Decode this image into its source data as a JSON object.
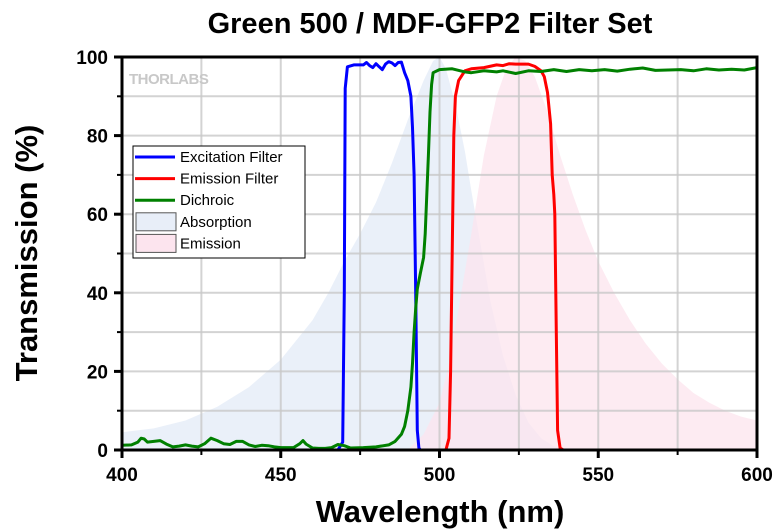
{
  "chart_data": {
    "type": "line",
    "title": "Green 500 / MDF-GFP2 Filter Set",
    "xlabel": "Wavelength (nm)",
    "ylabel": "Transmission (%)",
    "xlim": [
      400,
      600
    ],
    "ylim": [
      0,
      100
    ],
    "xticks": [
      400,
      450,
      500,
      550,
      600
    ],
    "yticks": [
      0,
      20,
      40,
      60,
      80,
      100
    ],
    "grid": true,
    "legend_position": "center-left",
    "watermark": "THORLABS",
    "series": [
      {
        "name": "Excitation Filter",
        "kind": "line",
        "color": "#0000ff",
        "points": [
          [
            400,
            0
          ],
          [
            468,
            0
          ],
          [
            469.5,
            2
          ],
          [
            470,
            40
          ],
          [
            470.3,
            92
          ],
          [
            471,
            97.5
          ],
          [
            473,
            98
          ],
          [
            476,
            98
          ],
          [
            477,
            98.6
          ],
          [
            478,
            97.8
          ],
          [
            479,
            97.3
          ],
          [
            480,
            98.3
          ],
          [
            481,
            97.5
          ],
          [
            482,
            96.8
          ],
          [
            483,
            98.2
          ],
          [
            484,
            98.8
          ],
          [
            485,
            98.5
          ],
          [
            486,
            97.8
          ],
          [
            487,
            98.6
          ],
          [
            488,
            98.7
          ],
          [
            489,
            96
          ],
          [
            490,
            94
          ],
          [
            491,
            90
          ],
          [
            491.5,
            82
          ],
          [
            492,
            70
          ],
          [
            492.5,
            40
          ],
          [
            493,
            5
          ],
          [
            493.5,
            0.5
          ],
          [
            494,
            0
          ],
          [
            600,
            0
          ]
        ]
      },
      {
        "name": "Emission Filter",
        "kind": "line",
        "color": "#ff0000",
        "points": [
          [
            400,
            0
          ],
          [
            502,
            0
          ],
          [
            503,
            3
          ],
          [
            503.5,
            20
          ],
          [
            504,
            50
          ],
          [
            504.5,
            80
          ],
          [
            505,
            90
          ],
          [
            506,
            94
          ],
          [
            508,
            96.5
          ],
          [
            510,
            97
          ],
          [
            514,
            97.3
          ],
          [
            518,
            98
          ],
          [
            520,
            97.8
          ],
          [
            522,
            98.3
          ],
          [
            524,
            98.2
          ],
          [
            528,
            98.2
          ],
          [
            530,
            97.6
          ],
          [
            532,
            96.5
          ],
          [
            533,
            95
          ],
          [
            534,
            91
          ],
          [
            535,
            83
          ],
          [
            535.5,
            70
          ],
          [
            536,
            65
          ],
          [
            536.3,
            60
          ],
          [
            536.8,
            30
          ],
          [
            537.2,
            5
          ],
          [
            538,
            0.5
          ],
          [
            539,
            0
          ],
          [
            600,
            0
          ]
        ]
      },
      {
        "name": "Dichroic",
        "kind": "line",
        "color": "#008000",
        "points": [
          [
            400,
            1.2
          ],
          [
            403,
            1.3
          ],
          [
            405,
            2
          ],
          [
            406,
            3
          ],
          [
            407,
            2.8
          ],
          [
            408,
            2
          ],
          [
            410,
            2.2
          ],
          [
            412,
            2.4
          ],
          [
            414,
            1.5
          ],
          [
            416,
            0.8
          ],
          [
            418,
            1
          ],
          [
            420,
            1.3
          ],
          [
            422,
            1
          ],
          [
            424,
            0.8
          ],
          [
            426,
            1.6
          ],
          [
            428,
            3
          ],
          [
            430,
            2.4
          ],
          [
            432,
            1.6
          ],
          [
            434,
            1.4
          ],
          [
            436,
            2.2
          ],
          [
            438,
            2.2
          ],
          [
            440,
            1.3
          ],
          [
            442,
            0.9
          ],
          [
            444,
            1.2
          ],
          [
            446,
            1.1
          ],
          [
            448,
            0.8
          ],
          [
            450,
            0.6
          ],
          [
            452,
            0.6
          ],
          [
            454,
            0.6
          ],
          [
            456,
            1.6
          ],
          [
            457,
            2.4
          ],
          [
            458,
            1.5
          ],
          [
            460,
            0.5
          ],
          [
            462,
            0.4
          ],
          [
            464,
            0.4
          ],
          [
            466,
            0.6
          ],
          [
            468,
            1.4
          ],
          [
            470,
            1.1
          ],
          [
            472,
            0.5
          ],
          [
            476,
            0.6
          ],
          [
            480,
            0.8
          ],
          [
            484,
            1.3
          ],
          [
            486,
            2.2
          ],
          [
            488,
            4
          ],
          [
            489,
            6
          ],
          [
            490,
            10
          ],
          [
            491,
            16
          ],
          [
            491.5,
            22
          ],
          [
            492,
            30
          ],
          [
            492.5,
            36
          ],
          [
            493,
            41
          ],
          [
            494,
            45
          ],
          [
            495,
            49
          ],
          [
            495.5,
            55
          ],
          [
            496,
            65
          ],
          [
            496.5,
            75
          ],
          [
            497,
            86
          ],
          [
            497.5,
            93
          ],
          [
            498,
            96
          ],
          [
            500,
            96.8
          ],
          [
            504,
            97
          ],
          [
            508,
            96.2
          ],
          [
            510,
            96
          ],
          [
            514,
            96.5
          ],
          [
            518,
            96.2
          ],
          [
            520,
            96.5
          ],
          [
            524,
            95.8
          ],
          [
            528,
            96.5
          ],
          [
            532,
            96.3
          ],
          [
            536,
            96.8
          ],
          [
            540,
            96.3
          ],
          [
            544,
            96.8
          ],
          [
            548,
            96.5
          ],
          [
            552,
            96.8
          ],
          [
            556,
            96.4
          ],
          [
            560,
            96.9
          ],
          [
            564,
            97.2
          ],
          [
            568,
            96.6
          ],
          [
            572,
            96.7
          ],
          [
            576,
            96.8
          ],
          [
            580,
            96.5
          ],
          [
            584,
            97
          ],
          [
            588,
            96.7
          ],
          [
            592,
            96.9
          ],
          [
            596,
            96.7
          ],
          [
            600,
            97.3
          ]
        ]
      },
      {
        "name": "Absorption",
        "kind": "area",
        "color": "#e8eef8",
        "points": [
          [
            400,
            4.5
          ],
          [
            410,
            5.5
          ],
          [
            420,
            7.5
          ],
          [
            430,
            11
          ],
          [
            440,
            16
          ],
          [
            450,
            23
          ],
          [
            460,
            33
          ],
          [
            465,
            40
          ],
          [
            470,
            48
          ],
          [
            475,
            55
          ],
          [
            480,
            63
          ],
          [
            485,
            73
          ],
          [
            490,
            84
          ],
          [
            495,
            94
          ],
          [
            498,
            99
          ],
          [
            500,
            100
          ],
          [
            502,
            97
          ],
          [
            505,
            88
          ],
          [
            508,
            76
          ],
          [
            510,
            66
          ],
          [
            513,
            52
          ],
          [
            516,
            38
          ],
          [
            520,
            24
          ],
          [
            524,
            14
          ],
          [
            528,
            7
          ],
          [
            532,
            3
          ],
          [
            536,
            1
          ],
          [
            540,
            0
          ]
        ]
      },
      {
        "name": "Emission",
        "kind": "area",
        "color": "#fce4ee",
        "points": [
          [
            490,
            0
          ],
          [
            495,
            4
          ],
          [
            500,
            12
          ],
          [
            503,
            22
          ],
          [
            506,
            36
          ],
          [
            510,
            55
          ],
          [
            514,
            75
          ],
          [
            518,
            90
          ],
          [
            521,
            97
          ],
          [
            524,
            100
          ],
          [
            527,
            99
          ],
          [
            530,
            95
          ],
          [
            534,
            86
          ],
          [
            538,
            75
          ],
          [
            542,
            65
          ],
          [
            546,
            56
          ],
          [
            550,
            48
          ],
          [
            555,
            40
          ],
          [
            560,
            33
          ],
          [
            565,
            27
          ],
          [
            570,
            22
          ],
          [
            575,
            18
          ],
          [
            580,
            14.5
          ],
          [
            585,
            12
          ],
          [
            590,
            10
          ],
          [
            595,
            8.5
          ],
          [
            600,
            7.5
          ]
        ]
      }
    ]
  }
}
